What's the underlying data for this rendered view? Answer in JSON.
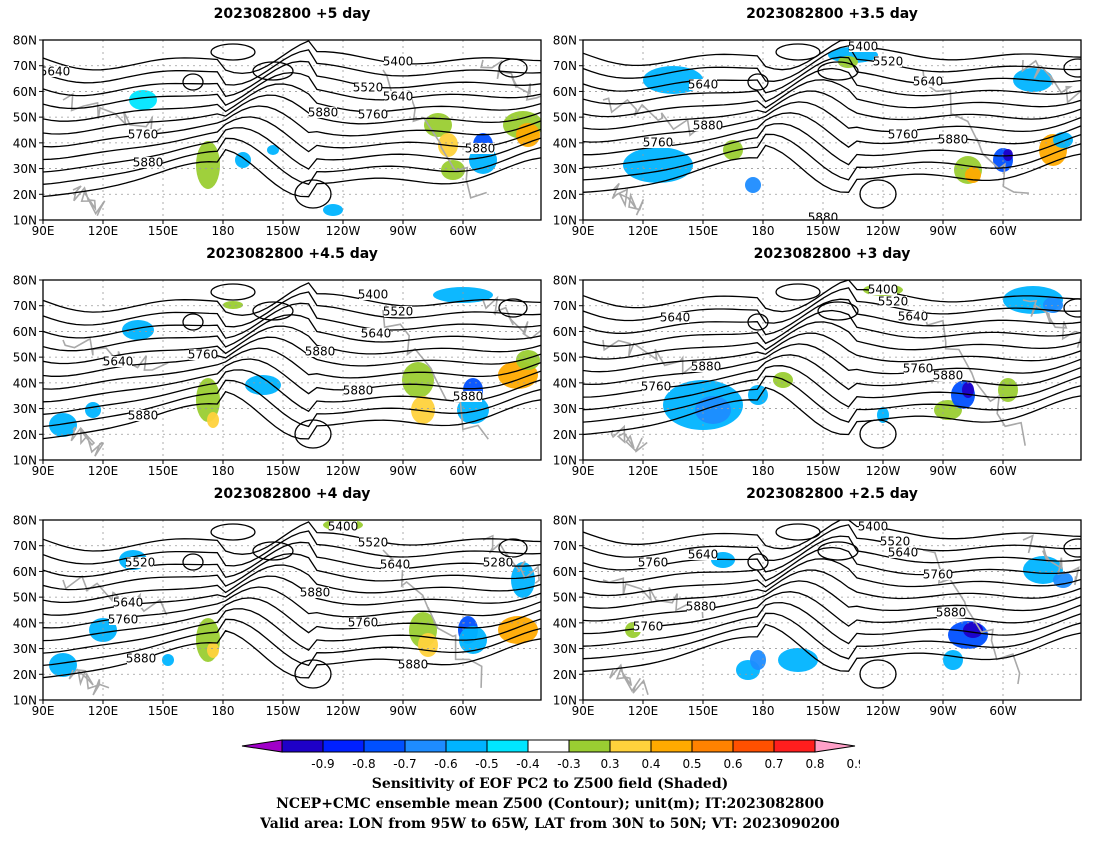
{
  "panels": [
    {
      "title": "2023082800  +5 day"
    },
    {
      "title": "2023082800  +3.5 day"
    },
    {
      "title": "2023082800  +4.5 day"
    },
    {
      "title": "2023082800  +3 day"
    },
    {
      "title": "2023082800  +4 day"
    },
    {
      "title": "2023082800  +2.5 day"
    }
  ],
  "axes": {
    "lat_labels": [
      "10N",
      "20N",
      "30N",
      "40N",
      "50N",
      "60N",
      "70N",
      "80N"
    ],
    "lon_labels": [
      "90E",
      "120E",
      "150E",
      "180",
      "150W",
      "120W",
      "90W",
      "60W"
    ]
  },
  "contour_labels": [
    "5400",
    "5520",
    "5640",
    "5760",
    "5880",
    "5280"
  ],
  "colorbar": {
    "labels": [
      "-0.9",
      "-0.8",
      "-0.7",
      "-0.6",
      "-0.5",
      "-0.4",
      "-0.3",
      "0.3",
      "0.4",
      "0.5",
      "0.6",
      "0.7",
      "0.8",
      "0.9"
    ],
    "colors": [
      "#a000c8",
      "#1e00c8",
      "#0020ff",
      "#0050ff",
      "#1e8cff",
      "#00b4ff",
      "#00e6ff",
      "#ffffff",
      "#9acd32",
      "#ffd23c",
      "#ffaa00",
      "#ff8200",
      "#ff5000",
      "#ff1e1e",
      "#ffa0c8"
    ]
  },
  "captions": {
    "line1": "Sensitivity of EOF PC2 to Z500 field (Shaded)",
    "line2": "NCEP+CMC ensemble mean Z500 (Contour); unit(m); IT:2023082800",
    "line3": "Valid area: LON from 95W to 65W, LAT from 30N to 50N; VT: 2023090200"
  }
}
